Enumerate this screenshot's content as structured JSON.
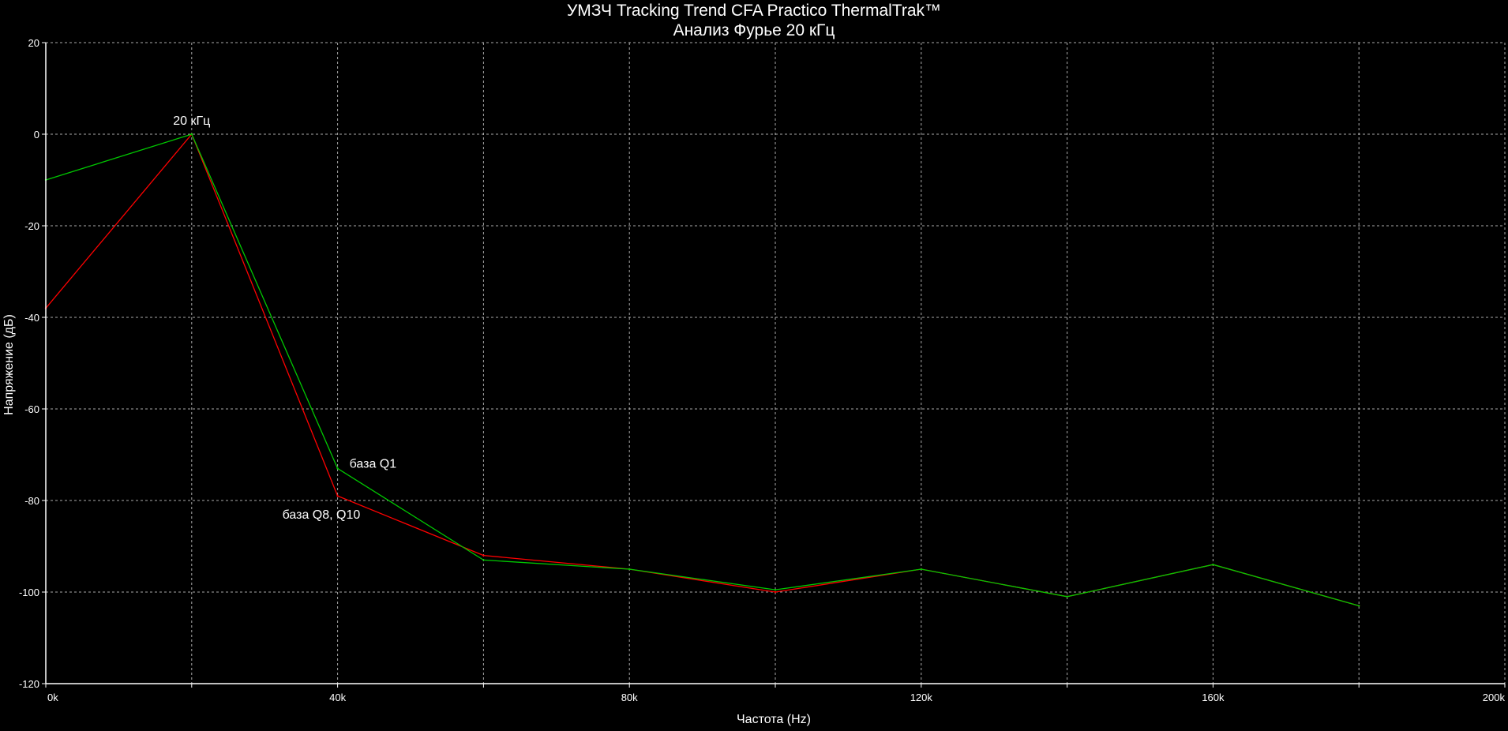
{
  "chart_data": {
    "type": "line",
    "title": "УМЗЧ Tracking Trend CFA Practico ThermalTrak™",
    "subtitle": "Анализ Фурье 20 кГц",
    "xlabel": "Частота (Hz)",
    "ylabel": "Напряжение (дБ)",
    "xlim": [
      0,
      200000
    ],
    "ylim": [
      -120,
      20
    ],
    "x_ticks": [
      {
        "value": 0,
        "label": "0k"
      },
      {
        "value": 20000,
        "label": ""
      },
      {
        "value": 40000,
        "label": "40k"
      },
      {
        "value": 60000,
        "label": ""
      },
      {
        "value": 80000,
        "label": "80k"
      },
      {
        "value": 100000,
        "label": ""
      },
      {
        "value": 120000,
        "label": "120k"
      },
      {
        "value": 140000,
        "label": ""
      },
      {
        "value": 160000,
        "label": "160k"
      },
      {
        "value": 180000,
        "label": ""
      },
      {
        "value": 200000,
        "label": "200k"
      }
    ],
    "y_ticks": [
      {
        "value": 20,
        "label": "20"
      },
      {
        "value": 0,
        "label": "0"
      },
      {
        "value": -20,
        "label": "-20"
      },
      {
        "value": -40,
        "label": "-40"
      },
      {
        "value": -60,
        "label": "-60"
      },
      {
        "value": -80,
        "label": "-80"
      },
      {
        "value": -100,
        "label": "-100"
      },
      {
        "value": -120,
        "label": "-120"
      }
    ],
    "grid": true,
    "background": "#000000",
    "grid_color": "#c8c8c8",
    "axis_color": "#ffffff",
    "text_color": "#ffffff",
    "x": [
      0,
      20000,
      40000,
      60000,
      80000,
      100000,
      120000,
      140000,
      160000,
      180000
    ],
    "series": [
      {
        "color": "#ff0000",
        "values": [
          -38,
          0,
          -79,
          -92,
          -95,
          -100,
          -95,
          -101,
          -94,
          -103
        ]
      },
      {
        "color": "#00c800",
        "values": [
          -10,
          0,
          -73,
          -93,
          -95,
          -99.5,
          -95,
          -101,
          -94,
          -103
        ]
      }
    ],
    "annotations": [
      {
        "text": "20 кГц",
        "x": 20000,
        "y": 0
      },
      {
        "text": "база  Q1",
        "x": 40000,
        "y": -73
      },
      {
        "text": "база Q8, Q10",
        "x": 40000,
        "y": -79
      }
    ]
  }
}
